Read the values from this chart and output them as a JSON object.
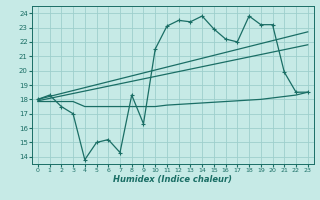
{
  "xlabel": "Humidex (Indice chaleur)",
  "bg_color": "#c6eae6",
  "grid_color": "#9ecfcc",
  "line_color": "#1a6e65",
  "xlim": [
    -0.5,
    23.5
  ],
  "ylim": [
    13.5,
    24.5
  ],
  "yticks": [
    14,
    15,
    16,
    17,
    18,
    19,
    20,
    21,
    22,
    23,
    24
  ],
  "xticks": [
    0,
    1,
    2,
    3,
    4,
    5,
    6,
    7,
    8,
    9,
    10,
    11,
    12,
    13,
    14,
    15,
    16,
    17,
    18,
    19,
    20,
    21,
    22,
    23
  ],
  "series_jagged_x": [
    0,
    1,
    2,
    3,
    4,
    5,
    6,
    7,
    8,
    9,
    10,
    11,
    12,
    13,
    14,
    15,
    16,
    17,
    18,
    19,
    20,
    21,
    22,
    23
  ],
  "series_jagged_y": [
    18.0,
    18.3,
    17.5,
    17.0,
    13.8,
    15.0,
    15.2,
    14.3,
    18.3,
    16.3,
    21.5,
    23.1,
    23.5,
    23.4,
    23.8,
    22.9,
    22.2,
    22.0,
    23.8,
    23.2,
    23.2,
    19.9,
    18.5,
    18.5
  ],
  "trend1_x": [
    0,
    23
  ],
  "trend1_y": [
    17.9,
    21.8
  ],
  "trend2_x": [
    0,
    23
  ],
  "trend2_y": [
    18.0,
    22.7
  ],
  "flat_x": [
    0,
    3,
    4,
    5,
    6,
    7,
    8,
    9,
    10,
    11,
    12,
    13,
    14,
    15,
    16,
    17,
    18,
    19,
    20,
    21,
    22,
    23
  ],
  "flat_y": [
    17.85,
    17.85,
    17.5,
    17.5,
    17.5,
    17.5,
    17.5,
    17.5,
    17.5,
    17.6,
    17.65,
    17.7,
    17.75,
    17.8,
    17.85,
    17.9,
    17.95,
    18.0,
    18.1,
    18.2,
    18.3,
    18.5
  ]
}
